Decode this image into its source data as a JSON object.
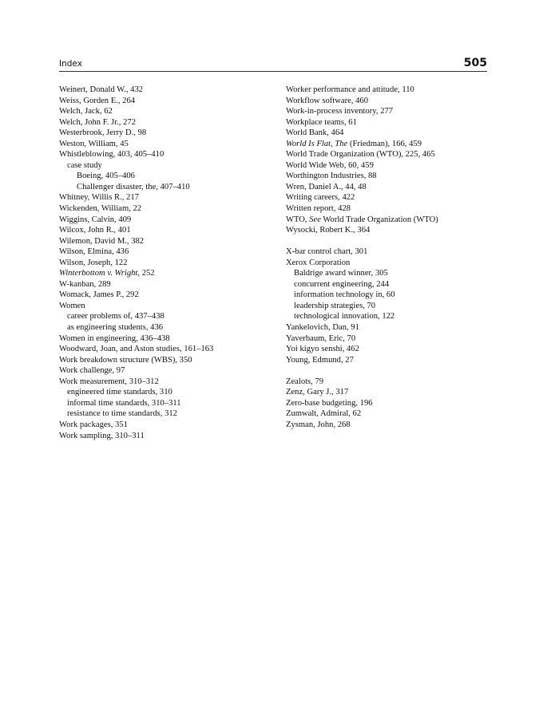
{
  "header": {
    "section": "Index",
    "page_number": "505"
  },
  "left_column": [
    [
      {
        "level": 0,
        "parts": [
          {
            "t": "Weinert, Donald W., 432"
          }
        ]
      },
      {
        "level": 0,
        "parts": [
          {
            "t": "Weiss, Gorden E., 264"
          }
        ]
      },
      {
        "level": 0,
        "parts": [
          {
            "t": "Welch, Jack, 62"
          }
        ]
      },
      {
        "level": 0,
        "parts": [
          {
            "t": "Welch, John F. Jr., 272"
          }
        ]
      },
      {
        "level": 0,
        "parts": [
          {
            "t": "Westerbrook, Jerry D., 98"
          }
        ]
      },
      {
        "level": 0,
        "parts": [
          {
            "t": "Weston, William, 45"
          }
        ]
      },
      {
        "level": 0,
        "parts": [
          {
            "t": "Whistleblowing, 403, 405–410"
          }
        ]
      },
      {
        "level": 1,
        "parts": [
          {
            "t": "case study"
          }
        ]
      },
      {
        "level": 2,
        "parts": [
          {
            "t": "Boeing, 405–406"
          }
        ]
      },
      {
        "level": 2,
        "parts": [
          {
            "t": "Challenger disaster, the, 407–410"
          }
        ]
      },
      {
        "level": 0,
        "parts": [
          {
            "t": "Whitney, Willis R., 217"
          }
        ]
      },
      {
        "level": 0,
        "parts": [
          {
            "t": "Wickenden, William, 22"
          }
        ]
      },
      {
        "level": 0,
        "parts": [
          {
            "t": "Wiggins, Calvin, 409"
          }
        ]
      },
      {
        "level": 0,
        "parts": [
          {
            "t": "Wilcox, John R., 401"
          }
        ]
      },
      {
        "level": 0,
        "parts": [
          {
            "t": "Wilemon, David M., 382"
          }
        ]
      },
      {
        "level": 0,
        "parts": [
          {
            "t": "Wilson, Elmina, 436"
          }
        ]
      },
      {
        "level": 0,
        "parts": [
          {
            "t": "Wilson, Joseph, 122"
          }
        ]
      },
      {
        "level": 0,
        "parts": [
          {
            "t": "Winterbottom v. Wright",
            "i": true
          },
          {
            "t": ", 252"
          }
        ]
      },
      {
        "level": 0,
        "parts": [
          {
            "t": "W-kanban, 289"
          }
        ]
      },
      {
        "level": 0,
        "parts": [
          {
            "t": "Womack, James P., 292"
          }
        ]
      },
      {
        "level": 0,
        "parts": [
          {
            "t": "Women"
          }
        ]
      },
      {
        "level": 1,
        "parts": [
          {
            "t": "career problems of, 437–438"
          }
        ]
      },
      {
        "level": 1,
        "parts": [
          {
            "t": "as engineering students, 436"
          }
        ]
      },
      {
        "level": 0,
        "parts": [
          {
            "t": "Women in engineering, 436–438"
          }
        ]
      },
      {
        "level": 0,
        "parts": [
          {
            "t": "Woodward, Joan, and Aston studies, 161–163"
          }
        ]
      },
      {
        "level": 0,
        "parts": [
          {
            "t": "Work breakdown structure (WBS), 350"
          }
        ]
      },
      {
        "level": 0,
        "parts": [
          {
            "t": "Work challenge, 97"
          }
        ]
      },
      {
        "level": 0,
        "parts": [
          {
            "t": "Work measurement, 310–312"
          }
        ]
      },
      {
        "level": 1,
        "parts": [
          {
            "t": "engineered time standards, 310"
          }
        ]
      },
      {
        "level": 1,
        "parts": [
          {
            "t": "informal time standards, 310–311"
          }
        ]
      },
      {
        "level": 1,
        "parts": [
          {
            "t": "resistance to time standards, 312"
          }
        ]
      },
      {
        "level": 0,
        "parts": [
          {
            "t": "Work packages, 351"
          }
        ]
      },
      {
        "level": 0,
        "parts": [
          {
            "t": "Work sampling, 310–311"
          }
        ]
      }
    ]
  ],
  "right_column": [
    [
      {
        "level": 0,
        "parts": [
          {
            "t": "Worker performance and attitude, 110"
          }
        ]
      },
      {
        "level": 0,
        "parts": [
          {
            "t": "Workflow software, 460"
          }
        ]
      },
      {
        "level": 0,
        "parts": [
          {
            "t": "Work-in-process inventory, 277"
          }
        ]
      },
      {
        "level": 0,
        "parts": [
          {
            "t": "Workplace teams, 61"
          }
        ]
      },
      {
        "level": 0,
        "parts": [
          {
            "t": "World Bank, 464"
          }
        ]
      },
      {
        "level": 0,
        "parts": [
          {
            "t": "World Is Flat, The",
            "i": true
          },
          {
            "t": " (Friedman), 166, 459"
          }
        ]
      },
      {
        "level": 0,
        "parts": [
          {
            "t": "World Trade Organization (WTO), 225, 465"
          }
        ]
      },
      {
        "level": 0,
        "parts": [
          {
            "t": "World Wide Web, 60, 459"
          }
        ]
      },
      {
        "level": 0,
        "parts": [
          {
            "t": "Worthington Industries, 88"
          }
        ]
      },
      {
        "level": 0,
        "parts": [
          {
            "t": "Wren, Daniel A., 44, 48"
          }
        ]
      },
      {
        "level": 0,
        "parts": [
          {
            "t": "Writing careers, 422"
          }
        ]
      },
      {
        "level": 0,
        "parts": [
          {
            "t": "Written report, 428"
          }
        ]
      },
      {
        "level": 0,
        "parts": [
          {
            "t": "WTO, "
          },
          {
            "t": "See",
            "i": true
          },
          {
            "t": " World Trade Organization (WTO)"
          }
        ]
      },
      {
        "level": 0,
        "parts": [
          {
            "t": "Wysocki, Robert K., 364"
          }
        ]
      }
    ],
    [
      {
        "level": 0,
        "parts": [
          {
            "t": "X-bar control chart, 301"
          }
        ]
      },
      {
        "level": 0,
        "parts": [
          {
            "t": "Xerox Corporation"
          }
        ]
      },
      {
        "level": 1,
        "parts": [
          {
            "t": "Baldrige award winner, 305"
          }
        ]
      },
      {
        "level": 1,
        "parts": [
          {
            "t": "concurrent engineering, 244"
          }
        ]
      },
      {
        "level": 1,
        "parts": [
          {
            "t": "information technology in, 60"
          }
        ]
      },
      {
        "level": 1,
        "parts": [
          {
            "t": "leadership strategies, 70"
          }
        ]
      },
      {
        "level": 1,
        "parts": [
          {
            "t": "technological innovation, 122"
          }
        ]
      },
      {
        "level": 0,
        "parts": [
          {
            "t": "Yankelovich, Dan, 91"
          }
        ]
      },
      {
        "level": 0,
        "parts": [
          {
            "t": "Yaverbaum, Eric, 70"
          }
        ]
      },
      {
        "level": 0,
        "parts": [
          {
            "t": "Yoi kigyo senshi, 462"
          }
        ]
      },
      {
        "level": 0,
        "parts": [
          {
            "t": "Young, Edmund, 27"
          }
        ]
      }
    ],
    [
      {
        "level": 0,
        "parts": [
          {
            "t": "Zealots, 79"
          }
        ]
      },
      {
        "level": 0,
        "parts": [
          {
            "t": "Zenz, Gary J., 317"
          }
        ]
      },
      {
        "level": 0,
        "parts": [
          {
            "t": "Zero-base budgeting, 196"
          }
        ]
      },
      {
        "level": 0,
        "parts": [
          {
            "t": "Zumwalt, Admiral, 62"
          }
        ]
      },
      {
        "level": 0,
        "parts": [
          {
            "t": "Zysman, John, 268"
          }
        ]
      }
    ]
  ]
}
